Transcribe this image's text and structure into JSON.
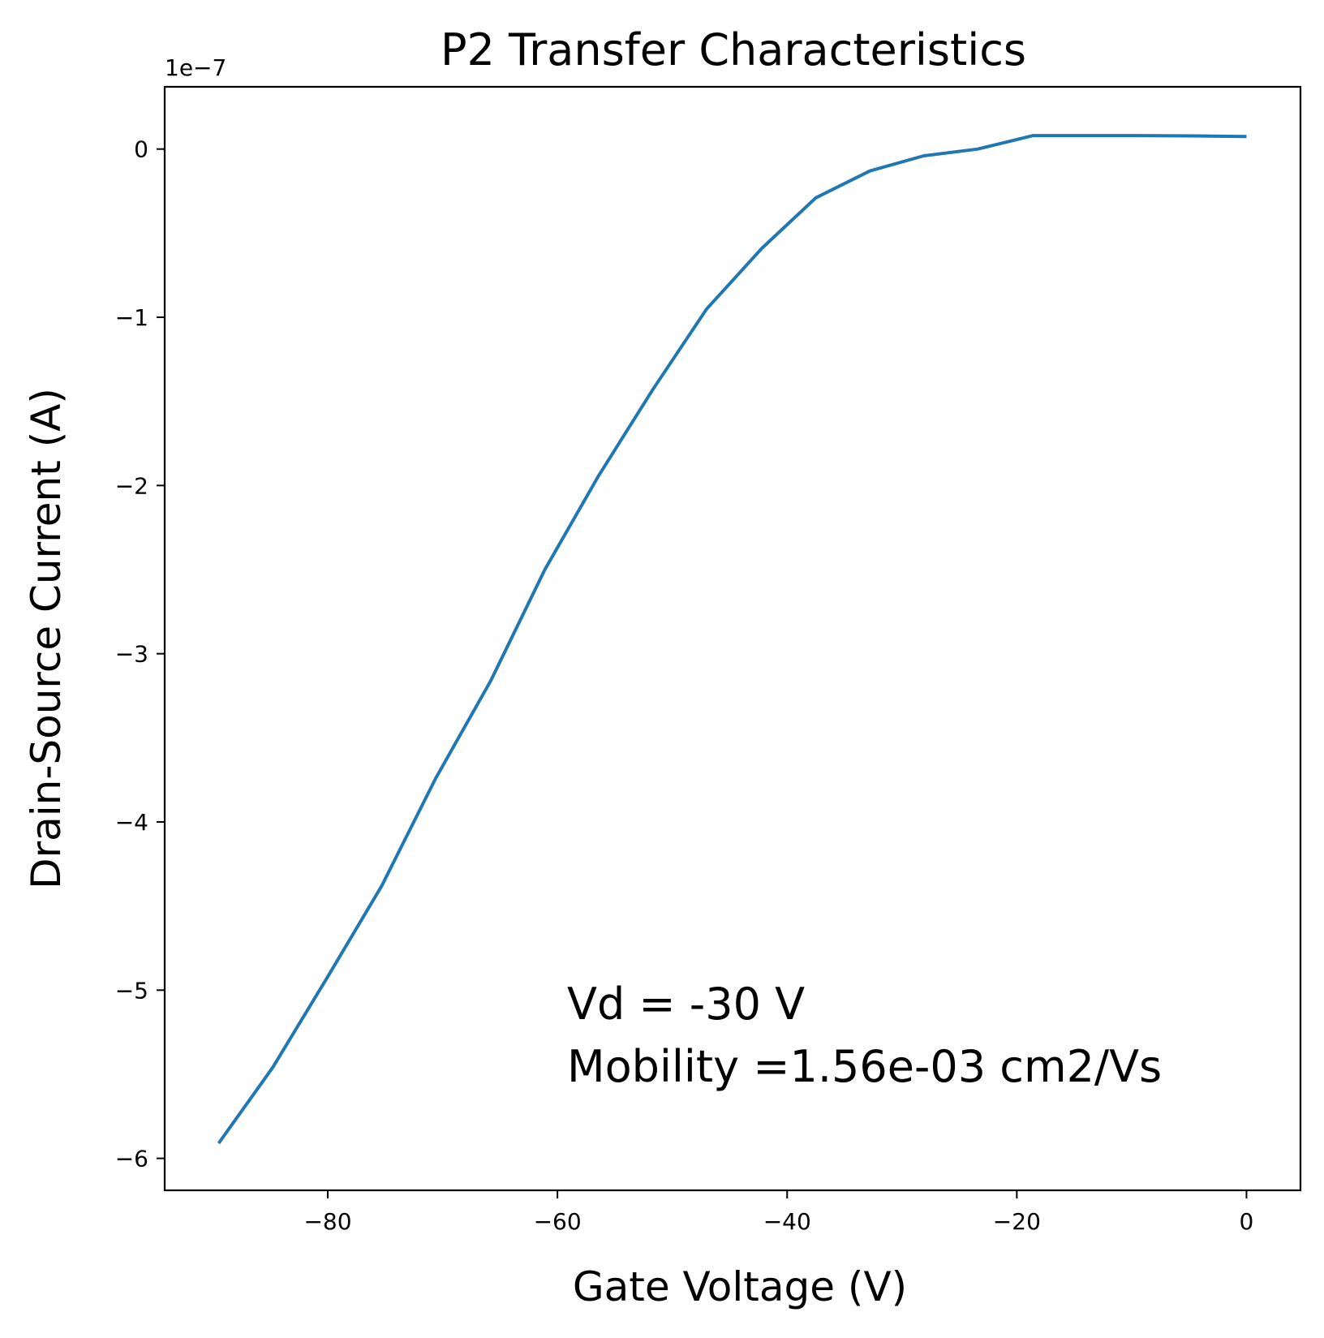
{
  "chart_data": {
    "type": "line",
    "title": "P2 Transfer Characteristics",
    "xlabel": "Gate Voltage (V)",
    "ylabel": "Drain-Source Current (A)",
    "y_offset_text": "1e−7",
    "y_scale_exponent": -7,
    "xlim": [
      -94.2,
      4.7
    ],
    "ylim": [
      -6.19,
      0.37
    ],
    "xticks": [
      -80,
      -60,
      -40,
      -20,
      0
    ],
    "xtick_labels": [
      "−80",
      "−60",
      "−40",
      "−20",
      "0"
    ],
    "yticks": [
      0,
      -1,
      -2,
      -3,
      -4,
      -5,
      -6
    ],
    "ytick_labels": [
      "0",
      "−1",
      "−2",
      "−3",
      "−4",
      "−5",
      "−6"
    ],
    "grid": false,
    "series": [
      {
        "color": "#1f77b4",
        "x": [
          -89.5,
          -84.8,
          -80.0,
          -75.3,
          -70.6,
          -65.8,
          -61.1,
          -56.4,
          -51.7,
          -47.0,
          -42.2,
          -37.5,
          -32.8,
          -28.1,
          -23.4,
          -18.6,
          -14.0,
          -9.3,
          -4.6,
          0.0
        ],
        "y": [
          -5.91,
          -5.46,
          -4.92,
          -4.38,
          -3.74,
          -3.16,
          -2.5,
          -1.94,
          -1.43,
          -0.95,
          -0.59,
          -0.29,
          -0.13,
          -0.04,
          0.0,
          0.08,
          0.08,
          0.08,
          0.078,
          0.075
        ]
      }
    ],
    "annotation_lines": [
      "Vd = -30 V",
      "Mobility =1.56e-03 cm2/Vs"
    ]
  }
}
